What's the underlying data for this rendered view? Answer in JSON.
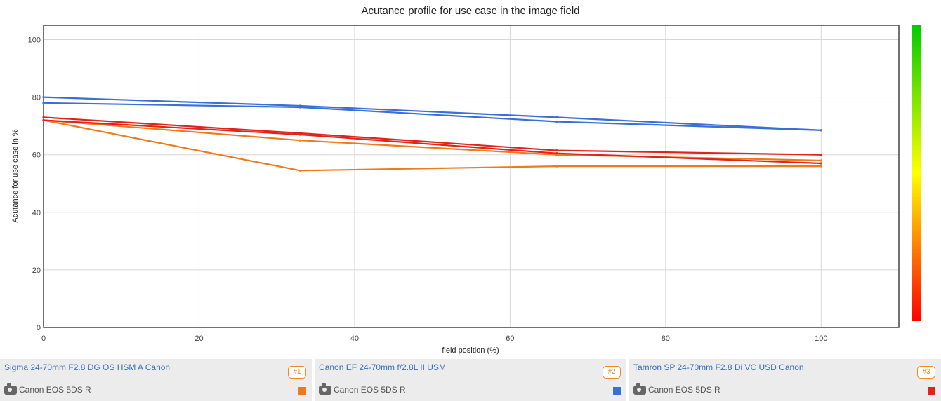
{
  "chart_data": {
    "type": "line",
    "title": "Acutance profile for use case in the image field",
    "xlabel": "field position (%)",
    "ylabel": "Acutance for use case in %",
    "xlim": [
      0,
      110
    ],
    "ylim": [
      0,
      105
    ],
    "xticks": [
      0,
      20,
      40,
      60,
      80,
      100
    ],
    "yticks": [
      0,
      20,
      40,
      60,
      80,
      100
    ],
    "grid": true,
    "colorbar": {
      "from": "#ff0000",
      "mid": "#ffff00",
      "to": "#00cc00",
      "placement": "right"
    },
    "series": [
      {
        "name": "Sigma 24-70mm F2.8 DG OS HSM A Canon",
        "color": "#f07a1a",
        "x": [
          0,
          33,
          66,
          100
        ],
        "y": [
          72,
          54.5,
          56,
          56
        ]
      },
      {
        "name": "Sigma 24-70mm F2.8 DG OS HSM A Canon",
        "color": "#f07a1a",
        "x": [
          0,
          33,
          66,
          100
        ],
        "y": [
          72,
          65,
          60,
          58
        ]
      },
      {
        "name": "Canon EF 24-70mm f/2.8L II USM",
        "color": "#3a6fd8",
        "x": [
          0,
          33,
          66,
          100
        ],
        "y": [
          80,
          77,
          73,
          68.5
        ]
      },
      {
        "name": "Canon EF 24-70mm f/2.8L II USM",
        "color": "#3a6fd8",
        "x": [
          0,
          33,
          66,
          100
        ],
        "y": [
          78,
          76.5,
          71.5,
          68.5
        ]
      },
      {
        "name": "Tamron SP 24-70mm F2.8 Di VC USD Canon",
        "color": "#e0241c",
        "x": [
          0,
          33,
          66,
          100
        ],
        "y": [
          73,
          67.5,
          61.5,
          60
        ]
      },
      {
        "name": "Tamron SP 24-70mm F2.8 Di VC USD Canon",
        "color": "#e0241c",
        "x": [
          0,
          33,
          66,
          100
        ],
        "y": [
          72,
          67,
          60.5,
          57
        ]
      }
    ]
  },
  "legend": [
    {
      "lens": "Sigma 24-70mm F2.8 DG OS HSM A Canon",
      "camera": "Canon EOS 5DS R",
      "rank": "#1",
      "color": "#f07a1a"
    },
    {
      "lens": "Canon EF 24-70mm f/2.8L II USM",
      "camera": "Canon EOS 5DS R",
      "rank": "#2",
      "color": "#3a6fd8"
    },
    {
      "lens": "Tamron SP 24-70mm F2.8 Di VC USD Canon",
      "camera": "Canon EOS 5DS R",
      "rank": "#3",
      "color": "#e0241c"
    }
  ]
}
